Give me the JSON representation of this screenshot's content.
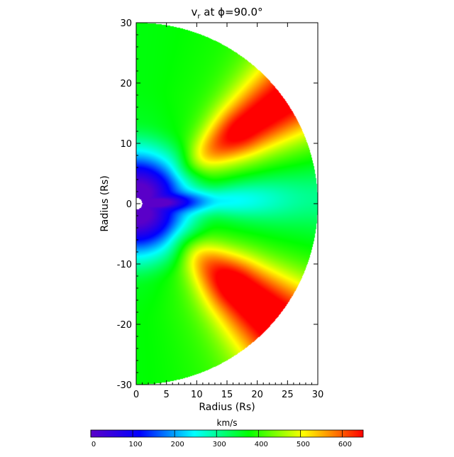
{
  "chart_data": {
    "type": "heatmap",
    "title": "v",
    "title_subscript": "r",
    "title_suffix": " at ϕ=90.0°",
    "xlabel": "Radius (Rs)",
    "ylabel": "Radius (Rs)",
    "xlim": [
      0,
      30
    ],
    "ylim": [
      -30,
      30
    ],
    "x_ticks": [
      0,
      5,
      10,
      15,
      20,
      25,
      30
    ],
    "y_ticks": [
      -30,
      -20,
      -10,
      0,
      10,
      20,
      30
    ],
    "domain": {
      "shape": "half-disk",
      "outer_radius": 30,
      "inner_radius": 1,
      "angle_range_deg": [
        -90,
        90
      ]
    },
    "field_description": "radial velocity; slow wind (blue/cyan) near the equator and inner radii, fast wind streams (red, ~600 km/s) centred near +35 and -40 degrees latitude at r>18",
    "features": [
      {
        "name": "north fast stream",
        "center_angle_deg": 35,
        "angle_width_deg": 9,
        "start_radius": 18,
        "peak_value": 640
      },
      {
        "name": "south fast stream",
        "center_angle_deg": -40,
        "angle_width_deg": 10,
        "start_radius": 18,
        "peak_value": 660
      },
      {
        "name": "equatorial slow stream",
        "center_angle_deg": 2,
        "angle_width_deg": 7,
        "min_value": 170
      }
    ],
    "colorbar": {
      "label": "km/s",
      "range": [
        0,
        650
      ],
      "ticks": [
        0,
        100,
        200,
        300,
        400,
        500,
        600
      ],
      "orientation": "horizontal"
    }
  },
  "colormap": [
    "#5a00c8",
    "#0000ff",
    "#00ffff",
    "#00ff00",
    "#ffff00",
    "#ff0000"
  ],
  "background_color": "#ffffff"
}
